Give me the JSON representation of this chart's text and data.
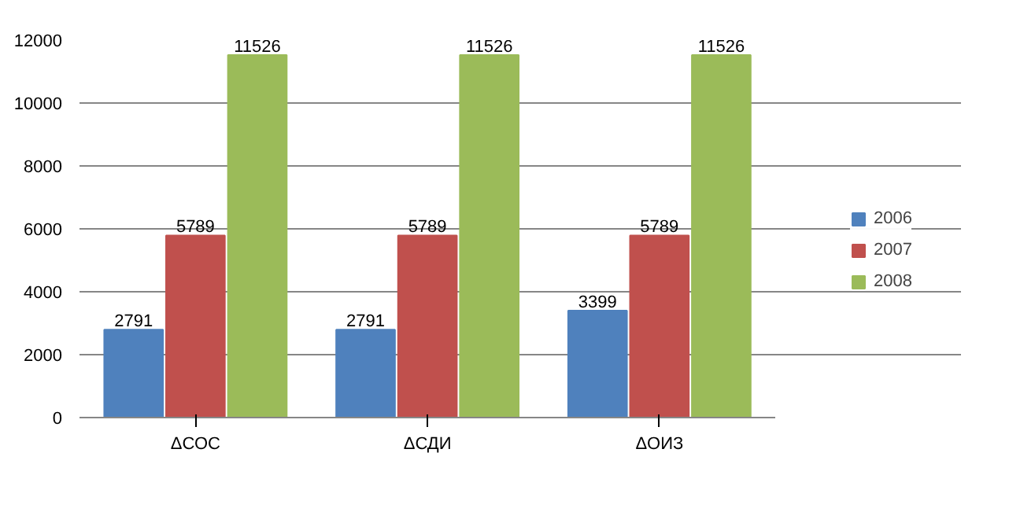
{
  "chart_data": {
    "type": "bar",
    "categories": [
      "ΔСОС",
      "ΔСДИ",
      "ΔОИЗ"
    ],
    "series": [
      {
        "name": "2006",
        "color": "#4f81bd",
        "values": [
          2791,
          2791,
          3399
        ]
      },
      {
        "name": "2007",
        "color": "#c0504d",
        "values": [
          5789,
          5789,
          5789
        ]
      },
      {
        "name": "2008",
        "color": "#9bbb59",
        "values": [
          11526,
          11526,
          11526
        ]
      }
    ],
    "ylim": [
      0,
      12000
    ],
    "yticks": [
      0,
      2000,
      4000,
      6000,
      8000,
      10000,
      12000
    ],
    "grid": "y",
    "legend": "right",
    "data_labels": true
  }
}
